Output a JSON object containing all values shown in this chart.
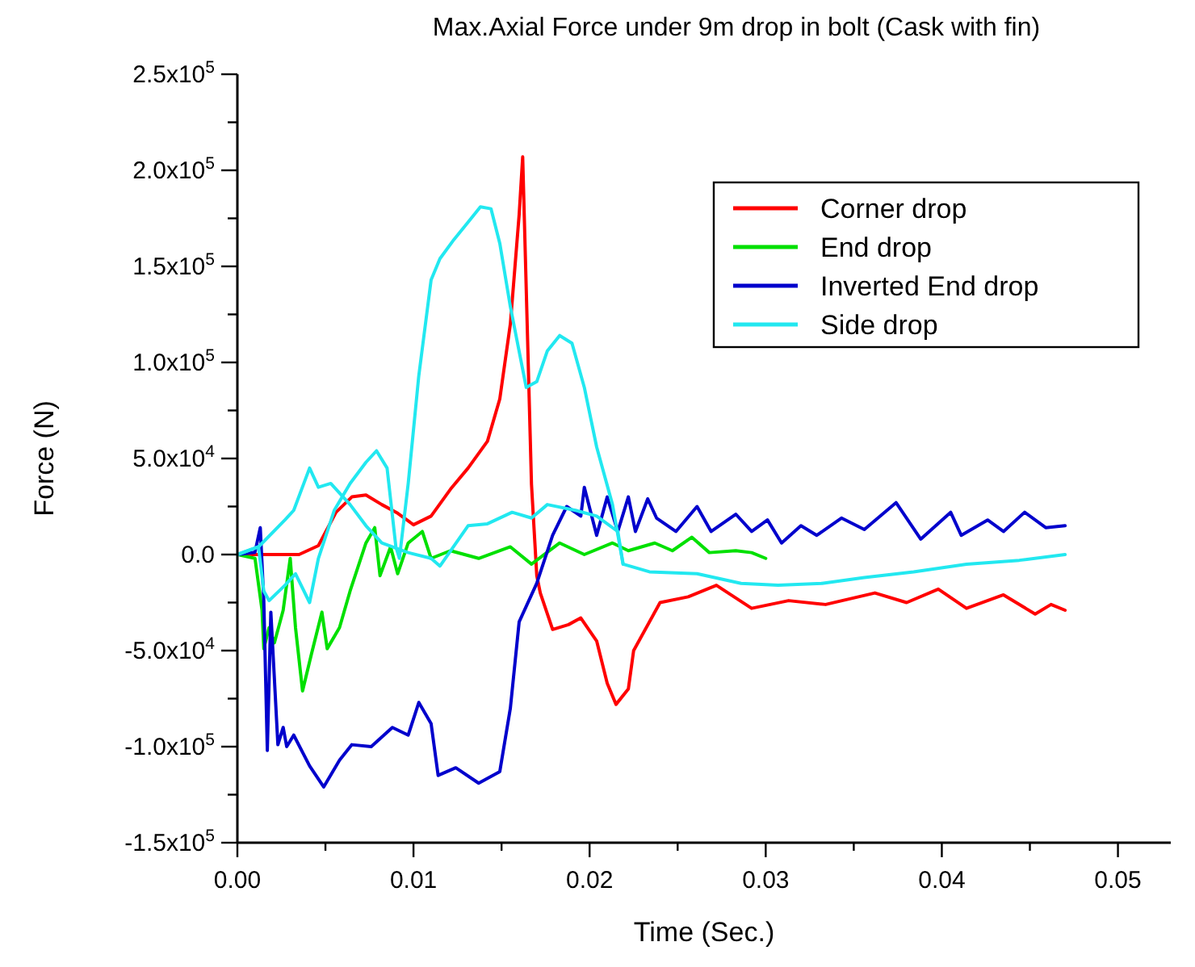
{
  "chart_data": {
    "type": "line",
    "title": "Max.Axial Force under 9m drop in bolt (Cask with fin)",
    "xlabel": "Time (Sec.)",
    "ylabel": "Force (N)",
    "xlim": [
      0,
      0.053
    ],
    "ylim": [
      -150000,
      250000
    ],
    "xticks": [
      {
        "value": 0,
        "label": "0.00"
      },
      {
        "value": 0.005,
        "label": null
      },
      {
        "value": 0.01,
        "label": "0.01"
      },
      {
        "value": 0.015,
        "label": null
      },
      {
        "value": 0.02,
        "label": "0.02"
      },
      {
        "value": 0.025,
        "label": null
      },
      {
        "value": 0.03,
        "label": "0.03"
      },
      {
        "value": 0.035,
        "label": null
      },
      {
        "value": 0.04,
        "label": "0.04"
      },
      {
        "value": 0.045,
        "label": null
      },
      {
        "value": 0.05,
        "label": "0.05"
      }
    ],
    "yticks": [
      {
        "value": -150000,
        "label": "-1.5x10$^{5}$"
      },
      {
        "value": -125000,
        "label": null
      },
      {
        "value": -100000,
        "label": "-1.0x10$^{5}$"
      },
      {
        "value": -75000,
        "label": null
      },
      {
        "value": -50000,
        "label": "-5.0x10$^{4}$"
      },
      {
        "value": -25000,
        "label": null
      },
      {
        "value": 0,
        "label": "0.0"
      },
      {
        "value": 25000,
        "label": null
      },
      {
        "value": 50000,
        "label": "5.0x10$^{4}$"
      },
      {
        "value": 75000,
        "label": null
      },
      {
        "value": 100000,
        "label": "1.0x10$^{5}$"
      },
      {
        "value": 125000,
        "label": null
      },
      {
        "value": 150000,
        "label": "1.5x10$^{5}$"
      },
      {
        "value": 175000,
        "label": null
      },
      {
        "value": 200000,
        "label": "2.0x10$^{5}$"
      },
      {
        "value": 225000,
        "label": null
      },
      {
        "value": 250000,
        "label": "2.5x10$^{5}$"
      }
    ],
    "legend": "top right",
    "marker": "none",
    "line_style": "solid",
    "series": [
      {
        "name": "Corner drop",
        "color": "#ff0000",
        "x": [
          0,
          0.0035,
          0.0046,
          0.0056,
          0.0065,
          0.0073,
          0.0082,
          0.0091,
          0.01,
          0.011,
          0.0121,
          0.0131,
          0.0142,
          0.0149,
          0.0155,
          0.016,
          0.0162,
          0.0167,
          0.017,
          0.0172,
          0.0179,
          0.0188,
          0.0195,
          0.0204,
          0.021,
          0.0215,
          0.0222,
          0.0225,
          0.024,
          0.0256,
          0.0272,
          0.0292,
          0.0313,
          0.0334,
          0.0362,
          0.038,
          0.0398,
          0.0414,
          0.0435,
          0.0453,
          0.0462,
          0.047
        ],
        "values": [
          0,
          0,
          4600,
          22000,
          30000,
          31000,
          26000,
          21500,
          15500,
          20000,
          34000,
          45000,
          59000,
          81000,
          120000,
          177000,
          207000,
          36500,
          -11000,
          -20000,
          -39000,
          -36500,
          -33000,
          -45000,
          -67000,
          -78000,
          -70000,
          -50000,
          -25000,
          -22000,
          -16000,
          -28000,
          -24000,
          -26000,
          -20000,
          -25000,
          -18000,
          -28000,
          -21000,
          -31000,
          -26000,
          -29000
        ]
      },
      {
        "name": "End drop",
        "color": "#00e000",
        "x": [
          0,
          0.001,
          0.0014,
          0.0015,
          0.0018,
          0.0021,
          0.0026,
          0.003,
          0.0033,
          0.0037,
          0.0042,
          0.0048,
          0.0051,
          0.0058,
          0.0064,
          0.0073,
          0.0078,
          0.0081,
          0.0087,
          0.0091,
          0.0097,
          0.0105,
          0.011,
          0.0121,
          0.0137,
          0.0155,
          0.0167,
          0.0183,
          0.0197,
          0.0213,
          0.0222,
          0.0237,
          0.0247,
          0.0258,
          0.0268,
          0.0283,
          0.0292,
          0.03
        ],
        "values": [
          0,
          -2000,
          -29000,
          -49000,
          -38000,
          -46000,
          -29000,
          -2000,
          -38000,
          -71000,
          -52000,
          -30000,
          -49000,
          -38000,
          -19000,
          6000,
          14000,
          -11000,
          4000,
          -10000,
          6000,
          12000,
          -2000,
          2000,
          -2000,
          4000,
          -5000,
          6000,
          0,
          6000,
          2000,
          6000,
          2000,
          9000,
          1000,
          2000,
          1000,
          -2000
        ]
      },
      {
        "name": "Inverted End drop",
        "color": "#0000cc",
        "x": [
          0,
          0.001,
          0.0013,
          0.0015,
          0.0017,
          0.0019,
          0.0023,
          0.0026,
          0.0028,
          0.0032,
          0.0041,
          0.0049,
          0.0058,
          0.0065,
          0.0076,
          0.0088,
          0.0097,
          0.0103,
          0.011,
          0.0114,
          0.0124,
          0.0137,
          0.0149,
          0.0155,
          0.016,
          0.017,
          0.0179,
          0.0187,
          0.0195,
          0.0197,
          0.0204,
          0.021,
          0.0216,
          0.0222,
          0.0226,
          0.0233,
          0.0238,
          0.0249,
          0.0261,
          0.0269,
          0.0283,
          0.0292,
          0.0301,
          0.0309,
          0.032,
          0.0329,
          0.0343,
          0.0356,
          0.0374,
          0.0388,
          0.0405,
          0.0411,
          0.0426,
          0.0435,
          0.0447,
          0.0459,
          0.047
        ],
        "values": [
          0,
          1200,
          14000,
          -24000,
          -102000,
          -30000,
          -99000,
          -90000,
          -100000,
          -94000,
          -110000,
          -121000,
          -107000,
          -99000,
          -100000,
          -90000,
          -94000,
          -77000,
          -88000,
          -115000,
          -111000,
          -119000,
          -113000,
          -80000,
          -35000,
          -15000,
          10000,
          25000,
          20000,
          35000,
          10000,
          30000,
          12000,
          30000,
          12000,
          29000,
          19000,
          12000,
          25000,
          12000,
          21000,
          12000,
          18000,
          6000,
          15000,
          10000,
          19000,
          13000,
          27000,
          8000,
          22000,
          10000,
          18000,
          12000,
          22000,
          14000,
          15000
        ]
      },
      {
        "name": "Side drop",
        "color": "#22e8f0",
        "x": [
          0,
          0.0012,
          0.0015,
          0.0018,
          0.0027,
          0.0033,
          0.0041,
          0.0046,
          0.0055,
          0.0064,
          0.0073,
          0.0079,
          0.0085,
          0.009,
          0.0092,
          0.0097,
          0.0103,
          0.011,
          0.0115,
          0.0123,
          0.0131,
          0.0138,
          0.0144,
          0.0149,
          0.0155,
          0.0164,
          0.017,
          0.0176,
          0.0183,
          0.019,
          0.0197,
          0.0204,
          0.0213,
          0.0219,
          0.0234,
          0.0261,
          0.0286,
          0.0307,
          0.0332,
          0.0356,
          0.0384,
          0.0414,
          0.0444,
          0.047
        ],
        "values": [
          0,
          4000,
          -19000,
          -24000,
          -16000,
          -10000,
          -25000,
          -2000,
          23000,
          37000,
          48000,
          54000,
          45000,
          4000,
          -2000,
          37000,
          93000,
          143000,
          154000,
          164000,
          173000,
          181000,
          180000,
          162000,
          129000,
          87000,
          90000,
          106000,
          114000,
          110000,
          87000,
          56000,
          26000,
          -5000,
          -9000,
          -10000,
          -15000,
          -16000,
          -15000,
          -12000,
          -9000,
          -5000,
          -3000,
          0
        ]
      },
      {
        "color": "#22e8f0",
        "x": [
          0,
          0.0012,
          0.0027,
          0.0032,
          0.0041,
          0.0046,
          0.0053,
          0.0064,
          0.0073,
          0.0082,
          0.0097,
          0.011,
          0.0115,
          0.0131,
          0.0142,
          0.0156,
          0.0167,
          0.0176,
          0.0192,
          0.0204,
          0.0216,
          0.0219
        ],
        "values": [
          0,
          4000,
          18000,
          23000,
          45000,
          35000,
          37000,
          26000,
          15000,
          6000,
          1000,
          -2000,
          -6000,
          15000,
          16000,
          22000,
          19000,
          26000,
          23000,
          20000,
          12000,
          -5000
        ]
      }
    ]
  }
}
